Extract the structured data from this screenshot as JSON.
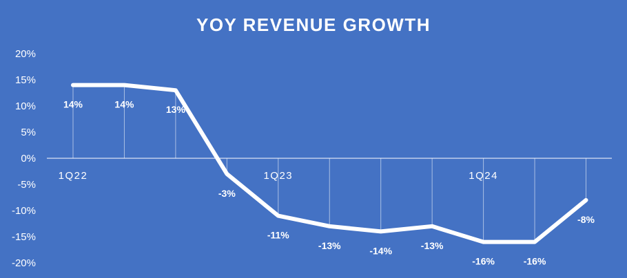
{
  "chart_data": {
    "type": "line",
    "title": "YOY REVENUE GROWTH",
    "xlabel": "",
    "ylabel": "",
    "ylim": [
      -20,
      20
    ],
    "yticks": [
      "20%",
      "15%",
      "10%",
      "5%",
      "0%",
      "-5%",
      "-10%",
      "-15%",
      "-20%"
    ],
    "x_tick_labels": [
      {
        "label": "1Q22",
        "index": 0
      },
      {
        "label": "1Q23",
        "index": 4
      },
      {
        "label": "1Q24",
        "index": 8
      }
    ],
    "values": [
      14,
      14,
      13,
      -3,
      -11,
      -13,
      -14,
      -13,
      -16,
      -16,
      -8
    ],
    "data_labels": [
      "14%",
      "14%",
      "13%",
      "-3%",
      "-11%",
      "-13%",
      "-14%",
      "-13%",
      "-16%",
      "-16%",
      "-8%"
    ],
    "grid": false,
    "legend": "none",
    "colors": {
      "background": "#4472c4",
      "line": "#ffffff",
      "text": "#ffffff",
      "axis": "#ffffff"
    }
  }
}
